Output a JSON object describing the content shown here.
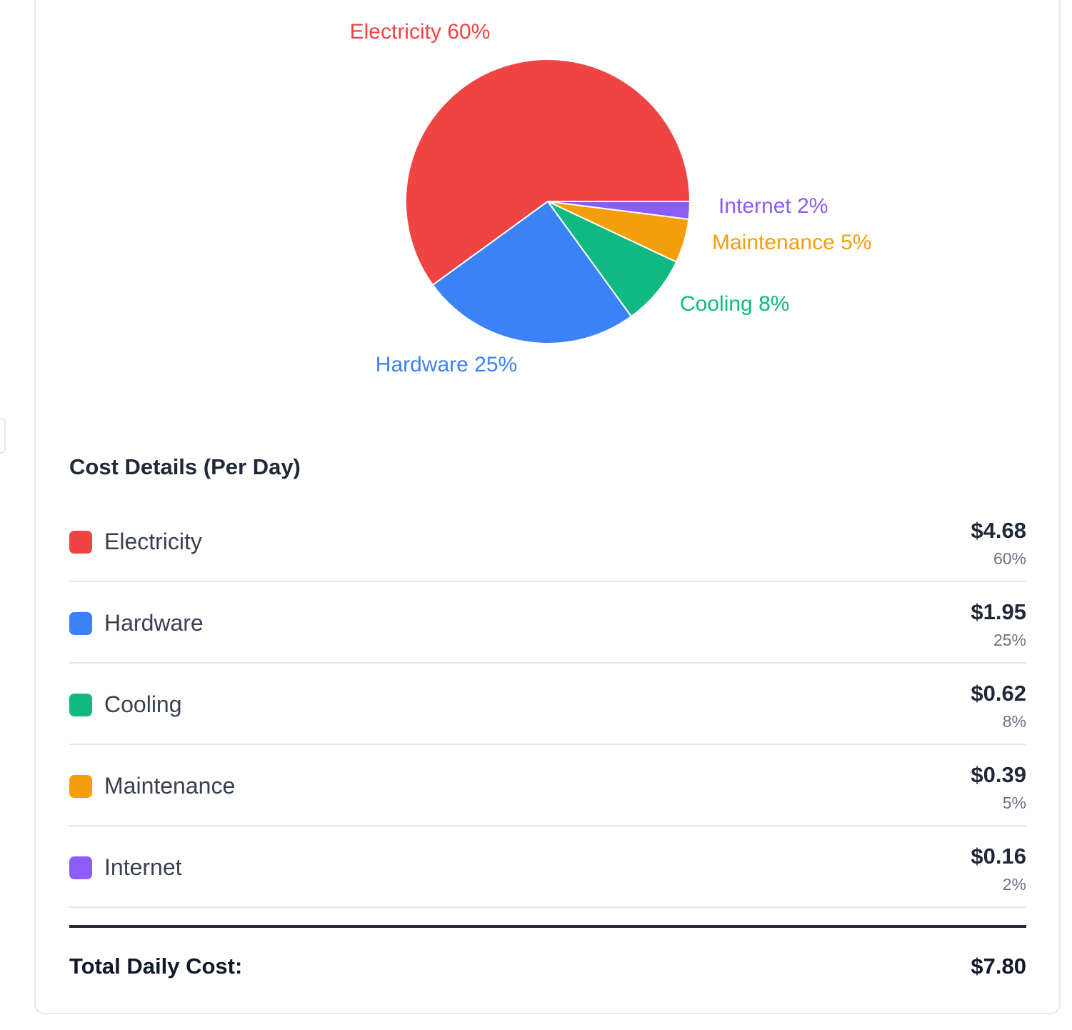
{
  "chart_data": {
    "type": "pie",
    "slices": [
      {
        "name": "Electricity",
        "value": 60,
        "label": "Electricity 60%",
        "color": "#ef4444"
      },
      {
        "name": "Hardware",
        "value": 25,
        "label": "Hardware 25%",
        "color": "#3b82f6"
      },
      {
        "name": "Cooling",
        "value": 8,
        "label": "Cooling 8%",
        "color": "#10b981"
      },
      {
        "name": "Maintenance",
        "value": 5,
        "label": "Maintenance 5%",
        "color": "#f59e0b"
      },
      {
        "name": "Internet",
        "value": 2,
        "label": "Internet 2%",
        "color": "#8b5cf6"
      }
    ]
  },
  "details": {
    "title": "Cost Details (Per Day)",
    "rows": [
      {
        "name": "Electricity",
        "amount": "$4.68",
        "percent": "60%",
        "color": "#ef4444"
      },
      {
        "name": "Hardware",
        "amount": "$1.95",
        "percent": "25%",
        "color": "#3b82f6"
      },
      {
        "name": "Cooling",
        "amount": "$0.62",
        "percent": "8%",
        "color": "#10b981"
      },
      {
        "name": "Maintenance",
        "amount": "$0.39",
        "percent": "5%",
        "color": "#f59e0b"
      },
      {
        "name": "Internet",
        "amount": "$0.16",
        "percent": "2%",
        "color": "#8b5cf6"
      }
    ],
    "total_label": "Total Daily Cost:",
    "total_value": "$7.80"
  }
}
